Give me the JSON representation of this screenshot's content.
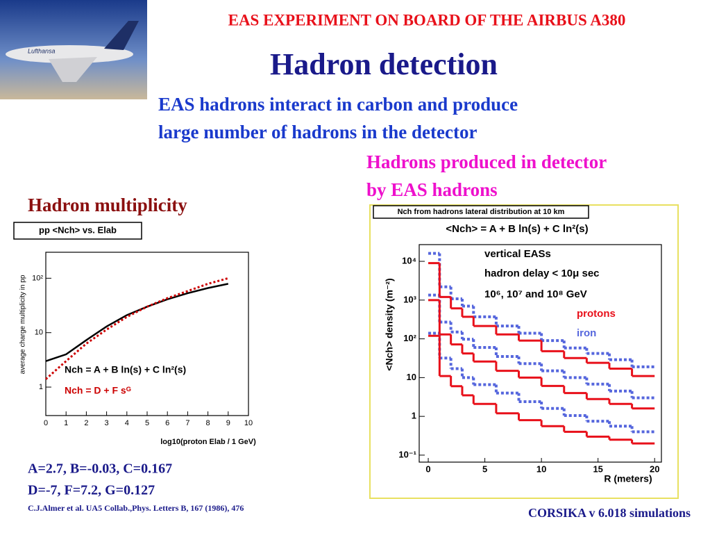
{
  "slide": {
    "header": "EAS EXPERIMENT ON BOARD OF THE AIRBUS A380",
    "title": "Hadron detection",
    "intro": [
      "EAS hadrons interact in carbon and produce",
      "large number of hadrons in the detector"
    ],
    "detector_note": [
      "Hadrons produced in detector",
      "by EAS hadrons"
    ],
    "left_heading": "Hadron multiplicity",
    "parameters": [
      "A=2.7, B=-0.03, C=0.167",
      "D=-7, F=7.2, G=0.127"
    ],
    "citation": "C.J.Almer et al. UA5 Collab.,Phys. Letters B, 167 (1986), 476",
    "footer": "CORSIKA v 6.018 simulations"
  },
  "chart_data": [
    {
      "type": "line",
      "title": "pp <Nch> vs. Elab",
      "x_label": "log10(proton Elab / 1 GeV)",
      "y_label": "average charge multiplicity in pp",
      "x": [
        0,
        1,
        2,
        3,
        4,
        5,
        6,
        7,
        8,
        9
      ],
      "series": [
        {
          "name": "Nch = A + B ln(s) + C ln²(s)",
          "color": "#000000",
          "style": "solid",
          "values": [
            3.0,
            4.0,
            7.3,
            13,
            21,
            30,
            41,
            53,
            66,
            79
          ]
        },
        {
          "name": "Nch = D + F sᴳ",
          "color": "#cc0000",
          "style": "dotted",
          "values": [
            1.4,
            3.0,
            6.3,
            11.4,
            19.5,
            30,
            43,
            58,
            79,
            100
          ]
        }
      ],
      "xlim": [
        0,
        10
      ],
      "xticks": [
        0,
        1,
        2,
        3,
        4,
        5,
        6,
        7,
        8,
        9,
        10
      ],
      "ylim": [
        0.3,
        300
      ],
      "yticks": [
        1,
        10,
        {
          "value": 100,
          "label": "10²"
        }
      ],
      "log_y": true
    },
    {
      "type": "step",
      "title": "Nch from hadrons lateral distribution at 10 km",
      "subtitle": "<Nch> = A + B ln(s) + C ln²(s)",
      "annotations": [
        "vertical EASs",
        "hadron delay < 10μ sec",
        "10⁶, 10⁷ and 10⁸ GeV"
      ],
      "x_label": "R (meters)",
      "y_label": "<Nch> density (m⁻²)",
      "bins": [
        0,
        1,
        2,
        3,
        4,
        6,
        8,
        10,
        12,
        14,
        16,
        18,
        20
      ],
      "series": [
        {
          "name": "iron",
          "color": "#5566dd",
          "style": "dotted",
          "values": [
            [
              16000,
              2200,
              1080,
              700,
              370,
              215,
              140,
              90,
              58,
              42,
              29,
              19
            ],
            [
              1350,
              270,
              150,
              98,
              60,
              35,
              23,
              15,
              10,
              6.8,
              4.5,
              3.0
            ],
            [
              140,
              32,
              17,
              10,
              6.6,
              4,
              2.4,
              1.6,
              1.05,
              0.75,
              0.56,
              0.4
            ]
          ]
        },
        {
          "name": "protons",
          "color": "#e8101a",
          "style": "solid",
          "values": [
            [
              9000,
              1200,
              610,
              370,
              215,
              130,
              90,
              48,
              32,
              24,
              17,
              11
            ],
            [
              1000,
              130,
              72,
              42,
              26,
              15,
              10,
              6.1,
              4,
              2.8,
              2.1,
              1.6
            ],
            [
              120,
              11,
              6,
              3.5,
              2.1,
              1.2,
              0.8,
              0.56,
              0.4,
              0.3,
              0.25,
              0.2
            ]
          ]
        }
      ],
      "xlim": [
        -0.8,
        20.6
      ],
      "xticks": [
        0,
        5,
        10,
        15,
        20
      ],
      "ylim": [
        0.066,
        27000
      ],
      "yticks": [
        {
          "value": 0.1,
          "label": "10⁻¹"
        },
        1,
        10,
        {
          "value": 100,
          "label": "10²"
        },
        {
          "value": 1000,
          "label": "10³"
        },
        {
          "value": 10000,
          "label": "10⁴"
        }
      ],
      "log_y": true
    }
  ]
}
